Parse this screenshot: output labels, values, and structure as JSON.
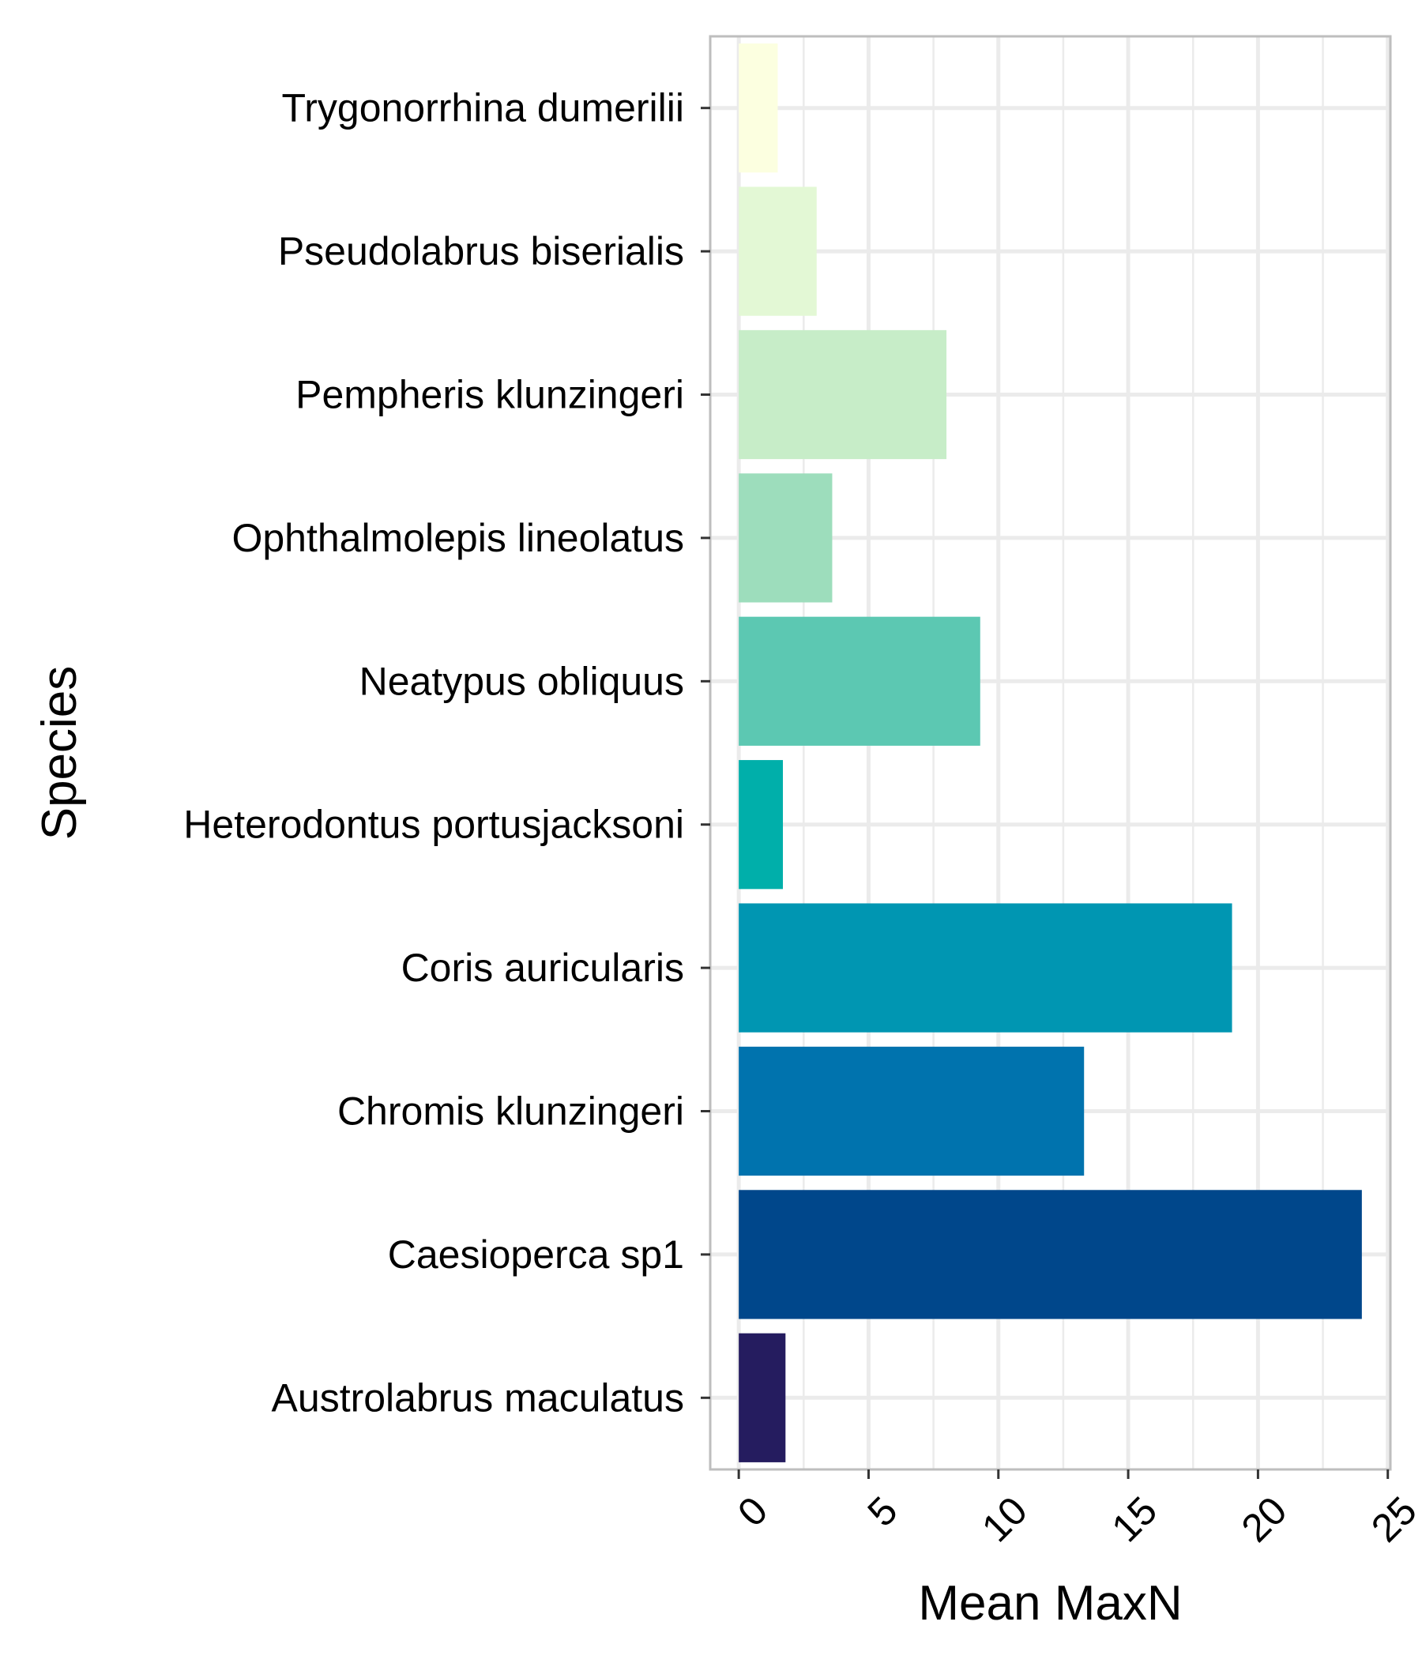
{
  "chart_data": {
    "type": "bar",
    "orientation": "horizontal",
    "title": "",
    "xlabel": "Mean MaxN",
    "ylabel": "Species",
    "xlim": [
      -1.1,
      25.1
    ],
    "xticks": [
      0,
      5,
      10,
      15,
      20,
      25
    ],
    "grid": true,
    "legend": "none",
    "categories": [
      "Trygonorrhina dumerilii",
      "Pseudolabrus biserialis",
      "Pempheris klunzingeri",
      "Ophthalmolepis lineolatus",
      "Neatypus obliquus",
      "Heterodontus portusjacksoni",
      "Coris auricularis",
      "Chromis klunzingeri",
      "Caesioperca sp1",
      "Austrolabrus maculatus"
    ],
    "values": [
      1.5,
      3.0,
      8.0,
      3.6,
      9.3,
      1.7,
      19.0,
      13.3,
      24.0,
      1.8
    ],
    "colors": [
      "#FCFFE0",
      "#E3F8D5",
      "#C7EDC8",
      "#9DDDBC",
      "#5CC8B2",
      "#00AFAA",
      "#0096B2",
      "#0073AE",
      "#00478B",
      "#251C5F"
    ]
  }
}
